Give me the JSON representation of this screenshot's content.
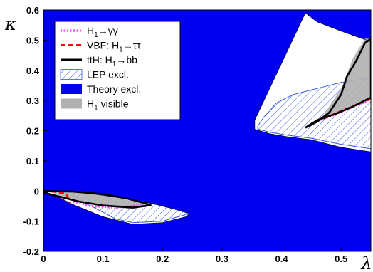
{
  "chart_data": {
    "type": "area",
    "xlabel": "λ",
    "ylabel": "κ",
    "xlim": [
      0,
      0.55
    ],
    "ylim": [
      -0.2,
      0.6
    ],
    "x_ticks": [
      "0",
      "0.1",
      "0.2",
      "0.3",
      "0.4",
      "0.5"
    ],
    "y_ticks": [
      "-0.2",
      "-0.1",
      "0",
      "0.1",
      "0.2",
      "0.3",
      "0.4",
      "0.5",
      "0.6"
    ],
    "grid": false,
    "legend_position": "top-left",
    "legend": [
      {
        "label_main": "H",
        "label_sub": "1",
        "label_rest": "→γγ",
        "style": "dotted-line",
        "color": "#ff33ff"
      },
      {
        "label_main": "VBF: H",
        "label_sub": "1",
        "label_rest": "→ττ",
        "style": "dashed-line",
        "color": "#ff0000"
      },
      {
        "label_main": "ttH: H",
        "label_sub": "1",
        "label_rest": "→bb",
        "style": "solid-line",
        "color": "#000000"
      },
      {
        "label_main": "LEP excl.",
        "label_sub": "",
        "label_rest": "",
        "style": "hatched-box",
        "color": "#3355dd"
      },
      {
        "label_main": "Theory excl.",
        "label_sub": "",
        "label_rest": "",
        "style": "filled-box",
        "color": "#0000ee"
      },
      {
        "label_main": "H",
        "label_sub": "1",
        "label_rest": " visible",
        "style": "filled-box",
        "color": "#b0b0b0"
      }
    ],
    "regions": {
      "theory_excluded": {
        "color": "#0000ee",
        "covers": "entire plane except white allowed regions"
      },
      "allowed_lower": [
        [
          0.0,
          0.0
        ],
        [
          0.05,
          0.0
        ],
        [
          0.12,
          -0.02
        ],
        [
          0.18,
          -0.04
        ],
        [
          0.22,
          -0.06
        ],
        [
          0.245,
          -0.075
        ],
        [
          0.24,
          -0.085
        ],
        [
          0.2,
          -0.105
        ],
        [
          0.15,
          -0.11
        ],
        [
          0.1,
          -0.085
        ],
        [
          0.05,
          -0.045
        ],
        [
          0.02,
          -0.015
        ],
        [
          0.0,
          0.0
        ]
      ],
      "allowed_upper": [
        [
          0.355,
          0.235
        ],
        [
          0.44,
          0.59
        ],
        [
          0.46,
          0.56
        ],
        [
          0.5,
          0.53
        ],
        [
          0.55,
          0.495
        ],
        [
          0.55,
          0.13
        ],
        [
          0.5,
          0.145
        ],
        [
          0.45,
          0.17
        ],
        [
          0.41,
          0.18
        ],
        [
          0.38,
          0.19
        ],
        [
          0.355,
          0.205
        ]
      ],
      "lep_excluded_lower": [
        [
          0.05,
          -0.005
        ],
        [
          0.09,
          -0.012
        ],
        [
          0.14,
          -0.025
        ],
        [
          0.19,
          -0.045
        ],
        [
          0.22,
          -0.06
        ],
        [
          0.245,
          -0.075
        ],
        [
          0.2,
          -0.1
        ],
        [
          0.15,
          -0.105
        ],
        [
          0.12,
          -0.092
        ],
        [
          0.1,
          -0.07
        ],
        [
          0.07,
          -0.04
        ],
        [
          0.05,
          -0.015
        ]
      ],
      "lep_excluded_upper": [
        [
          0.36,
          0.215
        ],
        [
          0.37,
          0.245
        ],
        [
          0.38,
          0.265
        ],
        [
          0.39,
          0.29
        ],
        [
          0.4,
          0.3
        ],
        [
          0.42,
          0.32
        ],
        [
          0.44,
          0.33
        ],
        [
          0.46,
          0.34
        ],
        [
          0.5,
          0.36
        ],
        [
          0.55,
          0.375
        ],
        [
          0.55,
          0.14
        ],
        [
          0.5,
          0.155
        ],
        [
          0.45,
          0.175
        ],
        [
          0.41,
          0.185
        ],
        [
          0.38,
          0.195
        ],
        [
          0.36,
          0.205
        ]
      ],
      "visible_lower": [
        [
          0.015,
          0.0
        ],
        [
          0.06,
          -0.005
        ],
        [
          0.12,
          -0.02
        ],
        [
          0.18,
          -0.047
        ],
        [
          0.15,
          -0.06
        ],
        [
          0.1,
          -0.05
        ],
        [
          0.05,
          -0.03
        ],
        [
          0.02,
          -0.01
        ]
      ],
      "visible_upper": [
        [
          0.44,
          0.215
        ],
        [
          0.47,
          0.25
        ],
        [
          0.5,
          0.34
        ],
        [
          0.52,
          0.44
        ],
        [
          0.54,
          0.505
        ],
        [
          0.55,
          0.505
        ],
        [
          0.55,
          0.31
        ],
        [
          0.51,
          0.27
        ],
        [
          0.47,
          0.24
        ]
      ]
    },
    "series": [
      {
        "name": "H1→γγ",
        "style": "dotted",
        "color": "#ff33ff",
        "segments": [
          [
            [
              0.05,
              -0.035
            ],
            [
              0.08,
              -0.05
            ],
            [
              0.12,
              -0.055
            ],
            [
              0.15,
              -0.05
            ],
            [
              0.17,
              -0.04
            ]
          ],
          [
            [
              0.45,
              0.225
            ],
            [
              0.48,
              0.245
            ],
            [
              0.51,
              0.27
            ],
            [
              0.54,
              0.295
            ],
            [
              0.55,
              0.305
            ]
          ]
        ]
      },
      {
        "name": "VBF: H1→ττ",
        "style": "dashed",
        "color": "#ff0000",
        "segments": [
          [
            [
              0.0,
              0.0
            ],
            [
              0.02,
              -0.003
            ],
            [
              0.035,
              -0.008
            ],
            [
              0.04,
              -0.015
            ],
            [
              0.042,
              -0.025
            ],
            [
              0.045,
              -0.04
            ]
          ],
          [
            [
              0.47,
              0.24
            ],
            [
              0.5,
              0.265
            ],
            [
              0.53,
              0.29
            ],
            [
              0.55,
              0.305
            ]
          ]
        ]
      },
      {
        "name": "ttH: H1→bb",
        "style": "solid",
        "color": "#000000",
        "segments": [
          [
            [
              0.0,
              0.0
            ],
            [
              0.05,
              -0.002
            ],
            [
              0.1,
              -0.01
            ],
            [
              0.14,
              -0.025
            ],
            [
              0.17,
              -0.04
            ],
            [
              0.18,
              -0.047
            ],
            [
              0.15,
              -0.055
            ],
            [
              0.1,
              -0.048
            ],
            [
              0.06,
              -0.035
            ],
            [
              0.03,
              -0.02
            ],
            [
              0.0,
              -0.005
            ]
          ],
          [
            [
              0.44,
              0.21
            ],
            [
              0.46,
              0.23
            ],
            [
              0.48,
              0.26
            ],
            [
              0.5,
              0.32
            ],
            [
              0.51,
              0.38
            ],
            [
              0.525,
              0.43
            ],
            [
              0.54,
              0.49
            ],
            [
              0.55,
              0.505
            ],
            [
              0.55,
              0.31
            ],
            [
              0.52,
              0.28
            ],
            [
              0.49,
              0.255
            ],
            [
              0.46,
              0.235
            ],
            [
              0.44,
              0.21
            ]
          ]
        ]
      }
    ]
  }
}
